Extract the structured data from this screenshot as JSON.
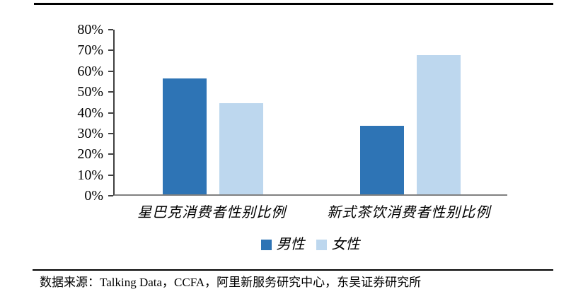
{
  "source_note": "数据来源：Talking Data，CCFA，阿里新服务研究中心，东吴证券研究所",
  "chart_data": {
    "type": "bar",
    "categories": [
      "星巴克消费者性别比例",
      "新式茶饮消费者性别比例"
    ],
    "series": [
      {
        "name": "男性",
        "color": "#2E74B5",
        "values": [
          56,
          33
        ]
      },
      {
        "name": "女性",
        "color": "#BDD7EE",
        "values": [
          44,
          67
        ]
      }
    ],
    "title": "",
    "xlabel": "",
    "ylabel": "",
    "ylim": [
      0,
      80
    ],
    "ytick_step": 10,
    "ytick_labels": [
      "0%",
      "10%",
      "20%",
      "30%",
      "40%",
      "50%",
      "60%",
      "70%",
      "80%"
    ],
    "grid": false,
    "legend_position": "bottom",
    "colors": {
      "y_axis": "#404040",
      "x_axis": "#808080",
      "text": "#000000",
      "rule": "#000000"
    }
  }
}
